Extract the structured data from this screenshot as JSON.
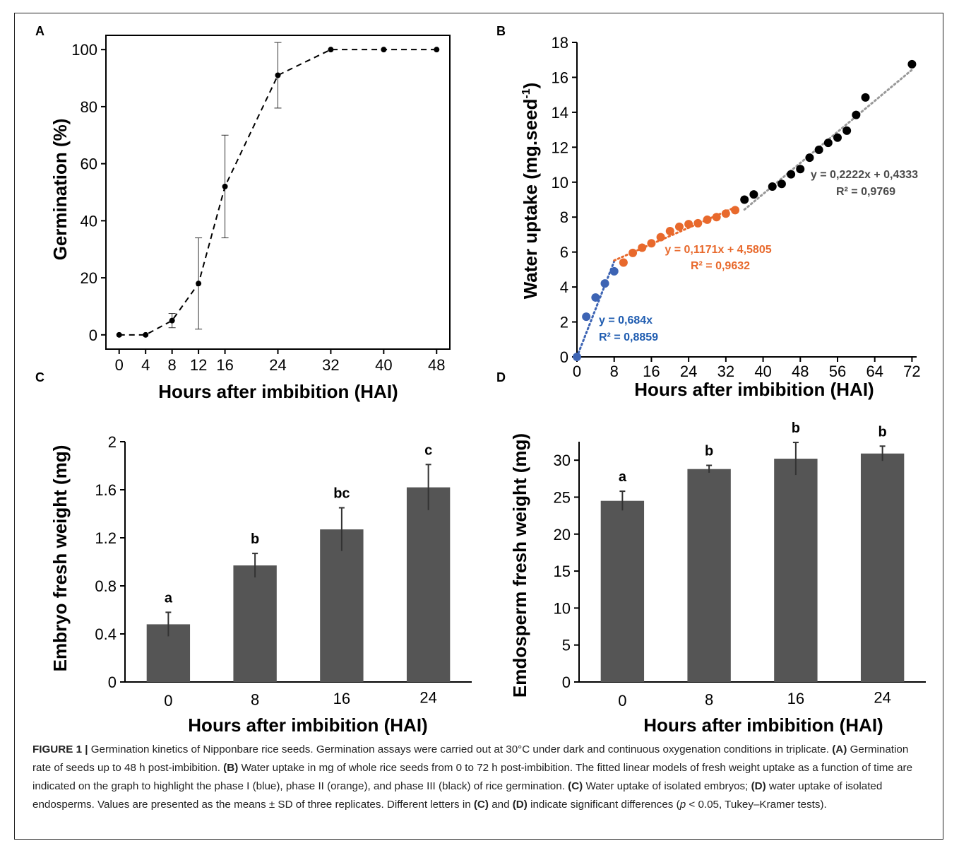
{
  "figure": {
    "panels": {
      "A": {
        "letter": "A"
      },
      "B": {
        "letter": "B"
      },
      "C": {
        "letter": "C"
      },
      "D": {
        "letter": "D"
      }
    },
    "caption": {
      "lead": "FIGURE 1 |",
      "s1": " Germination kinetics of Nipponbare rice seeds. Germination assays were carried out at 30°C under dark and continuous oxygenation conditions in triplicate. ",
      "A": "(A)",
      "s2": " Germination rate of seeds up to 48 h post-imbibition. ",
      "B": "(B)",
      "s3": " Water uptake in mg of whole rice seeds from 0 to 72 h post-imbibition. The fitted linear models of fresh weight uptake as a function of time are indicated on the graph to highlight the phase I (blue), phase II (orange), and phase III (black) of rice germination. ",
      "C": "(C)",
      "s4": " Water uptake of isolated embryos; ",
      "D": "(D)",
      "s5": " water uptake of isolated endosperms. Values are presented as the means ± SD of three replicates. Different letters in ",
      "C2": "(C)",
      "s6": " and ",
      "D2": "(D)",
      "s7": " indicate significant differences (",
      "p": "p",
      "s8": " < 0.05, Tukey–Kramer tests)."
    }
  },
  "chart_data": [
    {
      "panel": "A",
      "type": "line",
      "xlabel": "Hours after imbibition (HAI)",
      "ylabel": "Germination (%)",
      "xlim": [
        -2,
        50
      ],
      "ylim": [
        -5,
        105
      ],
      "xticks": [
        0,
        4,
        8,
        12,
        16,
        24,
        32,
        40,
        48
      ],
      "yticks": [
        0,
        20,
        40,
        60,
        80,
        100
      ],
      "x": [
        0,
        4,
        8,
        12,
        16,
        24,
        32,
        40,
        48
      ],
      "y": [
        0,
        0,
        5,
        18,
        52,
        91,
        100,
        100,
        100
      ],
      "err": [
        0,
        0,
        2.5,
        16,
        18,
        11.5,
        0,
        0,
        0
      ],
      "line_style": "dashed",
      "color": "#000000"
    },
    {
      "panel": "B",
      "type": "scatter",
      "xlabel": "Hours after imbibition (HAI)",
      "ylabel": "Water uptake (mg.seed",
      "ylabel_sup": "-1",
      "ylabel_end": ")",
      "xlim": [
        0,
        73
      ],
      "ylim": [
        0,
        18
      ],
      "xticks": [
        0,
        8,
        16,
        24,
        32,
        40,
        48,
        56,
        64,
        72
      ],
      "yticks": [
        0,
        2,
        4,
        6,
        8,
        10,
        12,
        14,
        16,
        18
      ],
      "series": [
        {
          "color": "#3d64b4",
          "x": [
            0,
            2,
            4,
            6,
            8
          ],
          "y": [
            0,
            2.3,
            3.4,
            4.2,
            4.9
          ],
          "fit": {
            "x0": 0,
            "x1": 8,
            "slope": 0.684,
            "intercept": 0
          },
          "eq": "y = 0,684x",
          "r2": "R² = 0,8859"
        },
        {
          "color": "#e8692c",
          "x": [
            10,
            12,
            14,
            16,
            18,
            20,
            22,
            24,
            26,
            28,
            30,
            32,
            34
          ],
          "y": [
            5.4,
            5.95,
            6.25,
            6.5,
            6.85,
            7.2,
            7.45,
            7.6,
            7.65,
            7.85,
            8.0,
            8.2,
            8.4
          ],
          "fit": {
            "x0": 8,
            "x1": 34,
            "slope": 0.1171,
            "intercept": 4.5805
          },
          "eq": "y = 0,1171x + 4,5805",
          "r2": "R² = 0,9632"
        },
        {
          "color": "#000000",
          "x": [
            36,
            38,
            42,
            44,
            46,
            48,
            50,
            52,
            54,
            56,
            58,
            60,
            62,
            72
          ],
          "y": [
            9.0,
            9.3,
            9.75,
            9.9,
            10.45,
            10.75,
            11.4,
            11.85,
            12.25,
            12.55,
            12.95,
            13.85,
            14.85,
            16.75
          ],
          "fit": {
            "x0": 36,
            "x1": 72,
            "slope": 0.2222,
            "intercept": 0.4333
          },
          "eq": "y = 0,2222x + 0,4333",
          "r2": "R² = 0,9769"
        }
      ]
    },
    {
      "panel": "C",
      "type": "bar",
      "xlabel": "Hours after imbibition (HAI)",
      "ylabel": "Embryo fresh weight (mg)",
      "categories": [
        "0",
        "8",
        "16",
        "24"
      ],
      "values": [
        0.48,
        0.97,
        1.27,
        1.62
      ],
      "err": [
        0.1,
        0.1,
        0.18,
        0.19
      ],
      "letters": [
        "a",
        "b",
        "bc",
        "c"
      ],
      "ylim": [
        0,
        2
      ],
      "yticks": [
        "0",
        "0.4",
        "0.8",
        "1.2",
        "1.6",
        "2"
      ],
      "bar_color": "#555555"
    },
    {
      "panel": "D",
      "type": "bar",
      "xlabel": "Hours after imbibition (HAI)",
      "ylabel": "Emdosperm fresh weight (mg)",
      "categories": [
        "0",
        "8",
        "16",
        "24"
      ],
      "values": [
        24.5,
        28.8,
        30.2,
        30.9
      ],
      "err": [
        1.3,
        0.5,
        2.2,
        1.0
      ],
      "letters": [
        "a",
        "b",
        "b",
        "b"
      ],
      "ylim": [
        0,
        32.5
      ],
      "yticks": [
        "0",
        "5",
        "10",
        "15",
        "20",
        "25",
        "30"
      ],
      "bar_color": "#555555"
    }
  ]
}
